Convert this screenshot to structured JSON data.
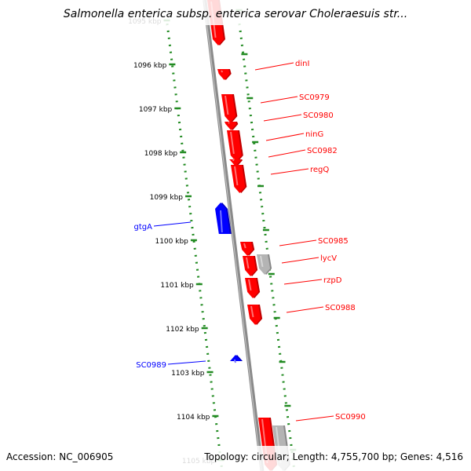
{
  "title": "Salmonella enterica subsp. enterica serovar Choleraesuis str...",
  "accession": "Accession: NC_006905",
  "topology": "Topology: circular; Length: 4,755,700 bp; Genes: 4,516",
  "colors": {
    "forward_gene": "#ff0000",
    "reverse_gene": "#0000ff",
    "pseudo_gene": "#b4b4b4",
    "backbone": "#8a8a8a",
    "tick": "#228b22"
  },
  "scale_ticks": [
    "1095 kbp",
    "1096 kbp",
    "1097 kbp",
    "1098 kbp",
    "1099 kbp",
    "1100 kbp",
    "1101 kbp",
    "1102 kbp",
    "1103 kbp",
    "1104 kbp",
    "1105 kbp"
  ],
  "forward_labels": [
    "dinI",
    "SC0979",
    "SC0980",
    "ninG",
    "SC0982",
    "regQ",
    "SC0985",
    "lycV",
    "rzpD",
    "SC0988",
    "SC0990"
  ],
  "reverse_labels": [
    "gtgA",
    "SC0989"
  ]
}
